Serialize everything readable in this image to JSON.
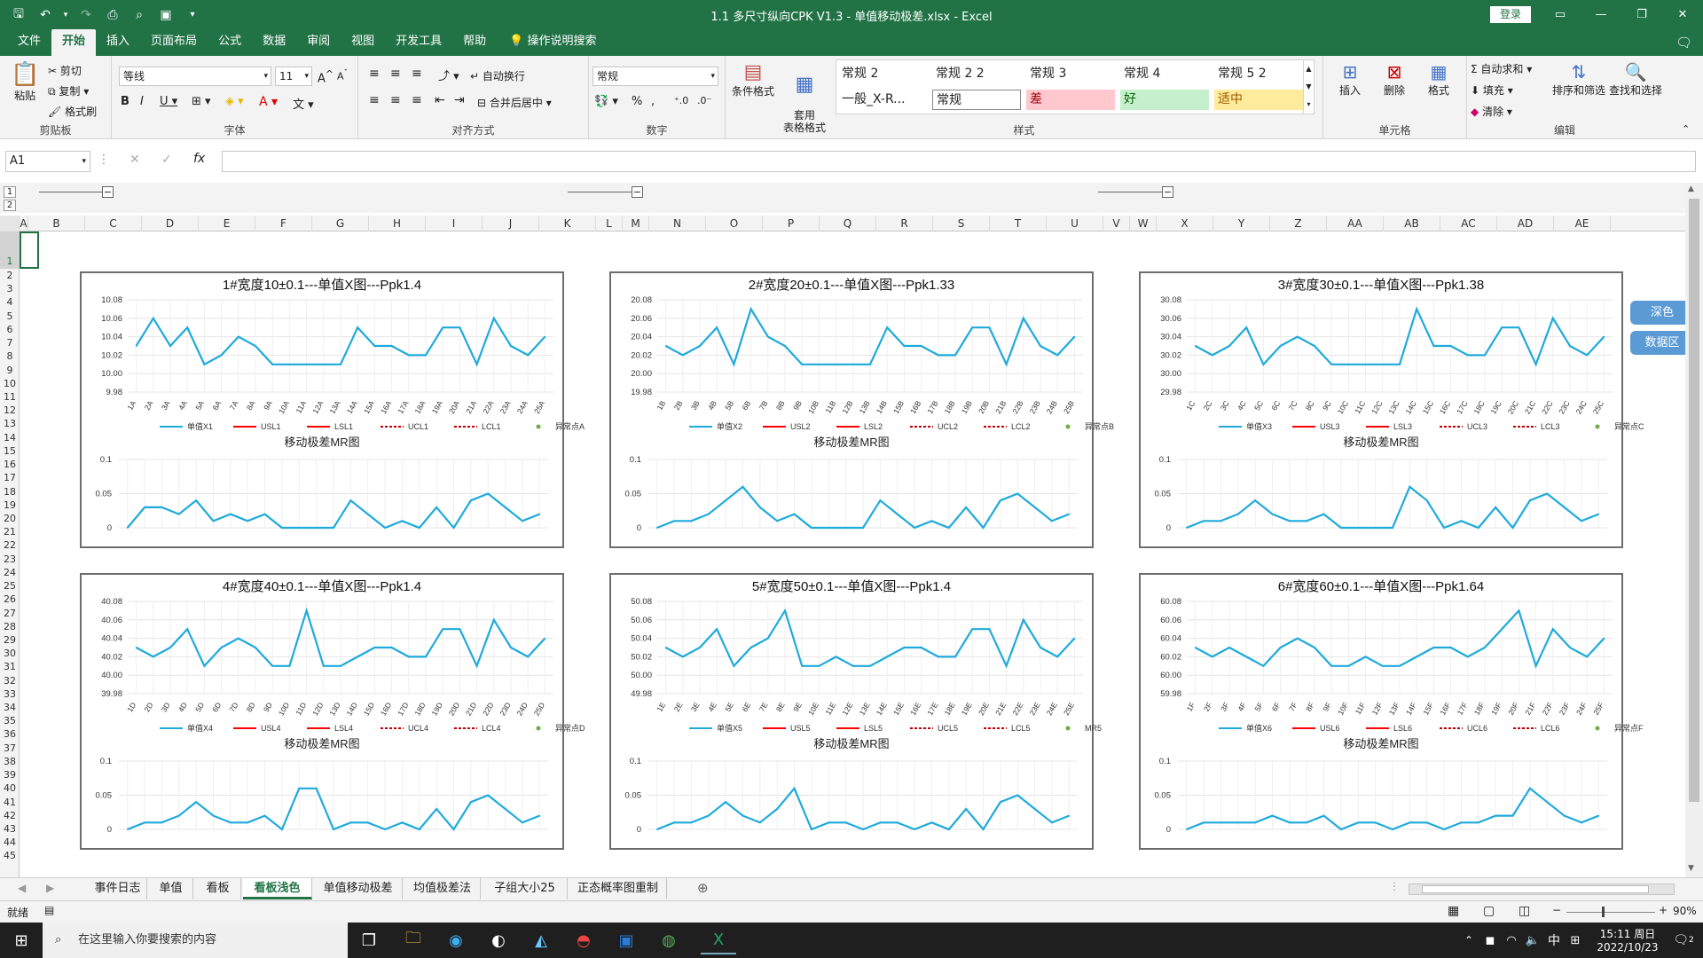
{
  "window": {
    "title": "1.1 多尺寸纵向CPK V1.3 - 单值移动极差.xlsx  -  Excel",
    "login": "登录"
  },
  "ribbon_tabs": [
    "文件",
    "开始",
    "插入",
    "页面布局",
    "公式",
    "数据",
    "审阅",
    "视图",
    "开发工具",
    "帮助"
  ],
  "tell_me": "操作说明搜索",
  "ribbon": {
    "clipboard": {
      "label": "剪贴板",
      "paste": "粘贴",
      "cut": "剪切",
      "copy": "复制",
      "format_painter": "格式刷"
    },
    "font": {
      "label": "字体",
      "name": "等线",
      "size": "11"
    },
    "alignment": {
      "label": "对齐方式",
      "wrap": "自动换行",
      "merge": "合并后居中"
    },
    "number": {
      "label": "数字",
      "format": "常规"
    },
    "styles": {
      "label": "样式",
      "cond_format": "条件格式",
      "table_format": "套用\n表格格式",
      "cells": [
        {
          "text": "常规 2",
          "bg": "#f3f3f3"
        },
        {
          "text": "常规 2 2",
          "bg": "#f3f3f3"
        },
        {
          "text": "常规 3",
          "bg": "#f3f3f3"
        },
        {
          "text": "常规 4",
          "bg": "#f3f3f3"
        },
        {
          "text": "常规 5 2",
          "bg": "#f3f3f3"
        },
        {
          "text": "一般_X-R...",
          "bg": "#f3f3f3"
        },
        {
          "text": "常规",
          "bg": "#ffffff"
        },
        {
          "text": "差",
          "bg": "#ffc7ce",
          "color": "#9c0006"
        },
        {
          "text": "好",
          "bg": "#c6efce",
          "color": "#006100"
        },
        {
          "text": "适中",
          "bg": "#ffeb9c",
          "color": "#9c5700"
        }
      ]
    },
    "cells_group": {
      "label": "单元格",
      "insert": "插入",
      "delete": "删除",
      "format": "格式"
    },
    "editing": {
      "label": "编辑",
      "autosum": "自动求和",
      "fill": "填充",
      "clear": "清除",
      "sort": "排序和筛选",
      "find": "查找和选择"
    }
  },
  "formula_bar": {
    "name_box": "A1",
    "content": ""
  },
  "column_headers": [
    "A",
    "B",
    "C",
    "D",
    "E",
    "F",
    "G",
    "H",
    "I",
    "J",
    "K",
    "L",
    "M",
    "N",
    "O",
    "P",
    "Q",
    "R",
    "S",
    "T",
    "U",
    "V",
    "W",
    "X",
    "Y",
    "Z",
    "AA",
    "AB",
    "AC",
    "AD",
    "AE"
  ],
  "row_headers": [
    "1",
    "2",
    "3",
    "4",
    "5",
    "6",
    "7",
    "8",
    "9",
    "10",
    "11",
    "12",
    "13",
    "14",
    "15",
    "16",
    "17",
    "18",
    "19",
    "20",
    "21",
    "22",
    "23",
    "24",
    "25",
    "26",
    "27",
    "28",
    "29",
    "30",
    "31",
    "32",
    "33",
    "34",
    "35",
    "36",
    "37",
    "38",
    "39",
    "40",
    "41",
    "42",
    "43",
    "44",
    "45"
  ],
  "side_buttons": [
    "深色",
    "数据区"
  ],
  "chart_data": [
    {
      "type": "line",
      "title": "1#宽度10±0.1---单值X图---Ppk1.4",
      "x": [
        "1A",
        "2A",
        "3A",
        "4A",
        "5A",
        "6A",
        "7A",
        "8A",
        "9A",
        "10A",
        "11A",
        "12A",
        "13A",
        "14A",
        "15A",
        "16A",
        "17A",
        "18A",
        "19A",
        "20A",
        "21A",
        "22A",
        "23A",
        "24A",
        "25A"
      ],
      "ylim": [
        9.98,
        10.08
      ],
      "yticks": [
        "9.98",
        "10.00",
        "10.02",
        "10.04",
        "10.06",
        "10.08"
      ],
      "series": [
        {
          "name": "单值X1",
          "color": "#1eaadc",
          "values": [
            10.03,
            10.06,
            10.03,
            10.05,
            10.01,
            10.02,
            10.04,
            10.03,
            10.01,
            10.01,
            10.01,
            10.01,
            10.01,
            10.05,
            10.03,
            10.03,
            10.02,
            10.02,
            10.05,
            10.05,
            10.01,
            10.06,
            10.03,
            10.02,
            10.04
          ]
        }
      ],
      "legend": [
        "单值X1",
        "USL1",
        "LSL1",
        "UCL1",
        "LCL1",
        "异常点A"
      ],
      "mr": {
        "title": "移动极差MR图",
        "ylim": [
          0,
          0.1
        ],
        "yticks": [
          "0",
          "0.05",
          "0.1"
        ],
        "values": [
          0,
          0.03,
          0.03,
          0.02,
          0.04,
          0.01,
          0.02,
          0.01,
          0.02,
          0,
          0,
          0,
          0,
          0.04,
          0.02,
          0,
          0.01,
          0,
          0.03,
          0,
          0.04,
          0.05,
          0.03,
          0.01,
          0.02
        ]
      }
    },
    {
      "type": "line",
      "title": "2#宽度20±0.1---单值X图---Ppk1.33",
      "x": [
        "1B",
        "2B",
        "3B",
        "4B",
        "5B",
        "6B",
        "7B",
        "8B",
        "9B",
        "10B",
        "11B",
        "12B",
        "13B",
        "14B",
        "15B",
        "16B",
        "17B",
        "18B",
        "19B",
        "20B",
        "21B",
        "22B",
        "23B",
        "24B",
        "25B"
      ],
      "ylim": [
        19.98,
        20.08
      ],
      "yticks": [
        "19.98",
        "20.00",
        "20.02",
        "20.04",
        "20.06",
        "20.08"
      ],
      "series": [
        {
          "name": "单值X2",
          "color": "#1eaadc",
          "values": [
            20.03,
            20.02,
            20.03,
            20.05,
            20.01,
            20.07,
            20.04,
            20.03,
            20.01,
            20.01,
            20.01,
            20.01,
            20.01,
            20.05,
            20.03,
            20.03,
            20.02,
            20.02,
            20.05,
            20.05,
            20.01,
            20.06,
            20.03,
            20.02,
            20.04
          ]
        }
      ],
      "legend": [
        "单值X2",
        "USL2",
        "LSL2",
        "UCL2",
        "LCL2",
        "异常点B"
      ],
      "mr": {
        "title": "移动极差MR图",
        "ylim": [
          0,
          0.1
        ],
        "yticks": [
          "0",
          "0.05",
          "0.1"
        ],
        "values": [
          0,
          0.01,
          0.01,
          0.02,
          0.04,
          0.06,
          0.03,
          0.01,
          0.02,
          0,
          0,
          0,
          0,
          0.04,
          0.02,
          0,
          0.01,
          0,
          0.03,
          0,
          0.04,
          0.05,
          0.03,
          0.01,
          0.02
        ]
      }
    },
    {
      "type": "line",
      "title": "3#宽度30±0.1---单值X图---Ppk1.38",
      "x": [
        "1C",
        "2C",
        "3C",
        "4C",
        "5C",
        "6C",
        "7C",
        "8C",
        "9C",
        "10C",
        "11C",
        "12C",
        "13C",
        "14C",
        "15C",
        "16C",
        "17C",
        "18C",
        "19C",
        "20C",
        "21C",
        "22C",
        "23C",
        "24C",
        "25C"
      ],
      "ylim": [
        29.98,
        30.08
      ],
      "yticks": [
        "29.98",
        "30.00",
        "30.02",
        "30.04",
        "30.06",
        "30.08"
      ],
      "series": [
        {
          "name": "单值X3",
          "color": "#1eaadc",
          "values": [
            30.03,
            30.02,
            30.03,
            30.05,
            30.01,
            30.03,
            30.04,
            30.03,
            30.01,
            30.01,
            30.01,
            30.01,
            30.01,
            30.07,
            30.03,
            30.03,
            30.02,
            30.02,
            30.05,
            30.05,
            30.01,
            30.06,
            30.03,
            30.02,
            30.04
          ]
        }
      ],
      "legend": [
        "单值X3",
        "USL3",
        "LSL3",
        "UCL3",
        "LCL3",
        "异常点C"
      ],
      "mr": {
        "title": "移动极差MR图",
        "ylim": [
          0,
          0.1
        ],
        "yticks": [
          "0",
          "0.05",
          "0.1"
        ],
        "values": [
          0,
          0.01,
          0.01,
          0.02,
          0.04,
          0.02,
          0.01,
          0.01,
          0.02,
          0,
          0,
          0,
          0,
          0.06,
          0.04,
          0,
          0.01,
          0,
          0.03,
          0,
          0.04,
          0.05,
          0.03,
          0.01,
          0.02
        ]
      }
    },
    {
      "type": "line",
      "title": "4#宽度40±0.1---单值X图---Ppk1.4",
      "x": [
        "1D",
        "2D",
        "3D",
        "4D",
        "5D",
        "6D",
        "7D",
        "8D",
        "9D",
        "10D",
        "11D",
        "12D",
        "13D",
        "14D",
        "15D",
        "16D",
        "17D",
        "18D",
        "19D",
        "20D",
        "21D",
        "22D",
        "23D",
        "24D",
        "25D"
      ],
      "ylim": [
        39.98,
        40.08
      ],
      "yticks": [
        "39.98",
        "40.00",
        "40.02",
        "40.04",
        "40.06",
        "40.08"
      ],
      "series": [
        {
          "name": "单值X4",
          "color": "#1eaadc",
          "values": [
            40.03,
            40.02,
            40.03,
            40.05,
            40.01,
            40.03,
            40.04,
            40.03,
            40.01,
            40.01,
            40.07,
            40.01,
            40.01,
            40.02,
            40.03,
            40.03,
            40.02,
            40.02,
            40.05,
            40.05,
            40.01,
            40.06,
            40.03,
            40.02,
            40.04
          ]
        }
      ],
      "legend": [
        "单值X4",
        "USL4",
        "LSL4",
        "UCL4",
        "LCL4",
        "异常点D"
      ],
      "mr": {
        "title": "移动极差MR图",
        "ylim": [
          0,
          0.1
        ],
        "yticks": [
          "0",
          "0.05",
          "0.1"
        ],
        "values": [
          0,
          0.01,
          0.01,
          0.02,
          0.04,
          0.02,
          0.01,
          0.01,
          0.02,
          0,
          0.06,
          0.06,
          0,
          0.01,
          0.01,
          0,
          0.01,
          0,
          0.03,
          0,
          0.04,
          0.05,
          0.03,
          0.01,
          0.02
        ]
      }
    },
    {
      "type": "line",
      "title": "5#宽度50±0.1---单值X图---Ppk1.4",
      "x": [
        "1E",
        "2E",
        "3E",
        "4E",
        "5E",
        "6E",
        "7E",
        "8E",
        "9E",
        "10E",
        "11E",
        "12E",
        "13E",
        "14E",
        "15E",
        "16E",
        "17E",
        "18E",
        "19E",
        "20E",
        "21E",
        "22E",
        "23E",
        "24E",
        "25E"
      ],
      "ylim": [
        49.98,
        50.08
      ],
      "yticks": [
        "49.98",
        "50.00",
        "50.02",
        "50.04",
        "50.06",
        "50.08"
      ],
      "series": [
        {
          "name": "单值X5",
          "color": "#1eaadc",
          "values": [
            50.03,
            50.02,
            50.03,
            50.05,
            50.01,
            50.03,
            50.04,
            50.07,
            50.01,
            50.01,
            50.02,
            50.01,
            50.01,
            50.02,
            50.03,
            50.03,
            50.02,
            50.02,
            50.05,
            50.05,
            50.01,
            50.06,
            50.03,
            50.02,
            50.04
          ]
        }
      ],
      "legend": [
        "单值X5",
        "USL5",
        "LSL5",
        "UCL5",
        "LCL5",
        "MR5"
      ],
      "mr": {
        "title": "移动极差MR图",
        "ylim": [
          0,
          0.1
        ],
        "yticks": [
          "0",
          "0.05",
          "0.1"
        ],
        "values": [
          0,
          0.01,
          0.01,
          0.02,
          0.04,
          0.02,
          0.01,
          0.03,
          0.06,
          0,
          0.01,
          0.01,
          0,
          0.01,
          0.01,
          0,
          0.01,
          0,
          0.03,
          0,
          0.04,
          0.05,
          0.03,
          0.01,
          0.02
        ]
      }
    },
    {
      "type": "line",
      "title": "6#宽度60±0.1---单值X图---Ppk1.64",
      "x": [
        "1F",
        "2F",
        "3F",
        "4F",
        "5F",
        "6F",
        "7F",
        "8F",
        "9F",
        "10F",
        "11F",
        "12F",
        "13F",
        "14F",
        "15F",
        "16F",
        "17F",
        "18F",
        "19F",
        "20F",
        "21F",
        "22F",
        "23F",
        "24F",
        "25F"
      ],
      "ylim": [
        59.98,
        60.08
      ],
      "yticks": [
        "59.98",
        "60.00",
        "60.02",
        "60.04",
        "60.06",
        "60.08"
      ],
      "series": [
        {
          "name": "单值X6",
          "color": "#1eaadc",
          "values": [
            60.03,
            60.02,
            60.03,
            60.02,
            60.01,
            60.03,
            60.04,
            60.03,
            60.01,
            60.01,
            60.02,
            60.01,
            60.01,
            60.02,
            60.03,
            60.03,
            60.02,
            60.03,
            60.05,
            60.07,
            60.01,
            60.05,
            60.03,
            60.02,
            60.04
          ]
        }
      ],
      "legend": [
        "单值X6",
        "USL6",
        "LSL6",
        "UCL6",
        "LCL6",
        "异常点F"
      ],
      "mr": {
        "title": "移动极差MR图",
        "ylim": [
          0,
          0.1
        ],
        "yticks": [
          "0",
          "0.05",
          "0.1"
        ],
        "values": [
          0,
          0.01,
          0.01,
          0.01,
          0.01,
          0.02,
          0.01,
          0.01,
          0.02,
          0,
          0.01,
          0.01,
          0,
          0.01,
          0.01,
          0,
          0.01,
          0.01,
          0.02,
          0.02,
          0.06,
          0.04,
          0.02,
          0.01,
          0.02
        ]
      }
    }
  ],
  "legend_colors": {
    "series": "#1eaadc",
    "spec": "#ff0000",
    "control": "#c00000",
    "point": "#70ad47"
  },
  "sheet_tabs": [
    "事件日志",
    "单值",
    "看板",
    "看板浅色",
    "单值移动极差",
    "均值极差法",
    "子组大小25",
    "正态概率图重制"
  ],
  "active_sheet": "看板浅色",
  "status": {
    "ready": "就绪",
    "zoom": "90%"
  },
  "taskbar": {
    "search_placeholder": "在这里输入你要搜索的内容",
    "time": "15:11 周日",
    "date": "2022/10/23",
    "ime": "中",
    "notif_count": "2"
  }
}
